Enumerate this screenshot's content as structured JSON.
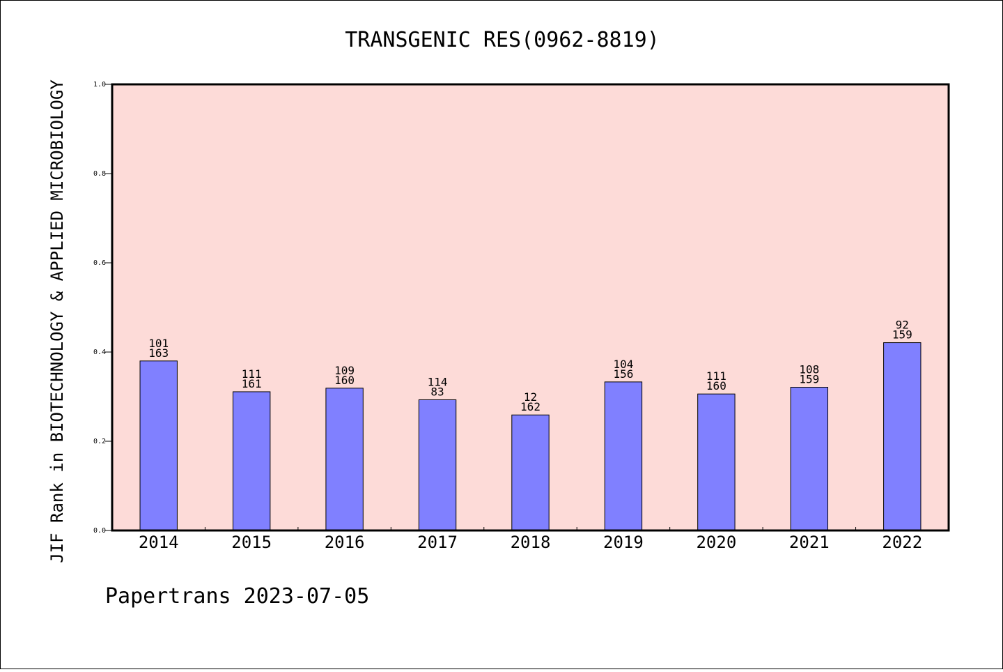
{
  "chart_data": {
    "type": "bar",
    "title": "TRANSGENIC RES(0962-8819)",
    "ylabel": "JIF Rank in BIOTECHNOLOGY & APPLIED MICROBIOLOGY",
    "xlabel": "",
    "ylim": [
      0,
      1.0
    ],
    "yticks": [
      "0.0",
      "0.2",
      "0.4",
      "0.6",
      "0.8",
      "1.0"
    ],
    "categories": [
      "2014",
      "2015",
      "2016",
      "2017",
      "2018",
      "2019",
      "2020",
      "2021",
      "2022"
    ],
    "values": [
      0.38,
      0.311,
      0.319,
      0.293,
      0.259,
      0.333,
      0.306,
      0.321,
      0.421
    ],
    "ranks": [
      "101",
      "111",
      "109",
      "114",
      "12",
      "104",
      "111",
      "108",
      "92"
    ],
    "totals": [
      "163",
      "161",
      "160",
      "83",
      "162",
      "156",
      "160",
      "159",
      "159"
    ],
    "grid": false,
    "colors": {
      "plot_bg": "#fddbd8",
      "bar_fill": "#8080ff",
      "bar_stroke": "#000000"
    }
  },
  "footer": "Papertrans 2023-07-05"
}
